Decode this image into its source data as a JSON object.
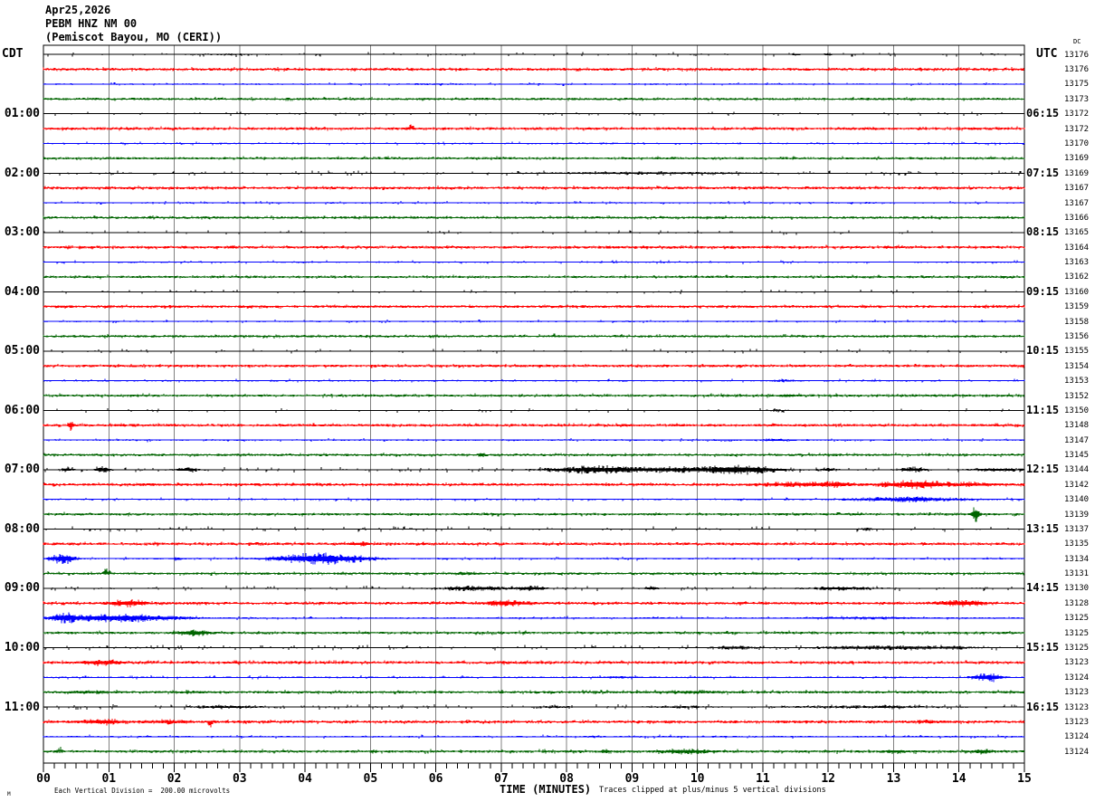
{
  "title": {
    "date": "Apr25,2026",
    "station": "PEBM HNZ NM 00",
    "location": "(Pemiscot Bayou, MO (CERI))"
  },
  "axes": {
    "left_title": "CDT",
    "right_title": "UTC",
    "right_col_header": "DC",
    "x_title": "TIME (MINUTES)",
    "footer_left": "Each Vertical Division =  200.00 microvolts",
    "footer_right": "Traces clipped at plus/minus 5 vertical divisions",
    "watermark": "M",
    "x_tick_labels": [
      "00",
      "01",
      "02",
      "03",
      "04",
      "05",
      "06",
      "07",
      "08",
      "09",
      "10",
      "11",
      "12",
      "13",
      "14",
      "15"
    ]
  },
  "hours": [
    {
      "row": 4,
      "cdt": "01:00",
      "utc": "06:15"
    },
    {
      "row": 8,
      "cdt": "02:00",
      "utc": "07:15"
    },
    {
      "row": 12,
      "cdt": "03:00",
      "utc": "08:15"
    },
    {
      "row": 16,
      "cdt": "04:00",
      "utc": "09:15"
    },
    {
      "row": 20,
      "cdt": "05:00",
      "utc": "10:15"
    },
    {
      "row": 24,
      "cdt": "06:00",
      "utc": "11:15"
    },
    {
      "row": 28,
      "cdt": "07:00",
      "utc": "12:15"
    },
    {
      "row": 32,
      "cdt": "08:00",
      "utc": "13:15"
    },
    {
      "row": 36,
      "cdt": "09:00",
      "utc": "14:15"
    },
    {
      "row": 40,
      "cdt": "10:00",
      "utc": "15:15"
    },
    {
      "row": 44,
      "cdt": "11:00",
      "utc": "16:15"
    }
  ],
  "chart_data": {
    "type": "line",
    "x_range_minutes": [
      0,
      15
    ],
    "x_title": "TIME (MINUTES)",
    "grid": "vertical lines each minute",
    "trace_colors": {
      "black": "#000000",
      "red": "#ff0000",
      "blue": "#0000ff",
      "green": "#006400"
    },
    "grid_color": "#808080",
    "noise_model": {
      "black": {
        "p": 0.1,
        "amp": 2.2,
        "body": 0.5
      },
      "red": {
        "p": 0.24,
        "amp": 2.1,
        "body": 1.5
      },
      "blue": {
        "p": 0.13,
        "amp": 1.8,
        "body": 0.8
      },
      "green": {
        "p": 0.2,
        "amp": 2.0,
        "body": 1.35
      }
    },
    "rows": [
      {
        "k": "black",
        "v": "13176",
        "n": 1.0,
        "e": [
          [
            2.8,
            1.5,
            1.2
          ],
          [
            11.5,
            0.1,
            2.2
          ],
          [
            12.0,
            0.1,
            2.2
          ]
        ]
      },
      {
        "k": "red",
        "v": "13176",
        "n": 1.0,
        "e": []
      },
      {
        "k": "blue",
        "v": "13175",
        "n": 1.0,
        "e": [
          [
            5.9,
            0.8,
            1.2
          ]
        ]
      },
      {
        "k": "green",
        "v": "13173",
        "n": 1.0,
        "e": []
      },
      {
        "k": "black",
        "v": "13172",
        "n": 0.9,
        "e": []
      },
      {
        "k": "red",
        "v": "13172",
        "n": 1.0,
        "e": [
          [
            5.63,
            0.06,
            6,
            "up"
          ]
        ]
      },
      {
        "k": "blue",
        "v": "13170",
        "n": 1.0,
        "e": [
          [
            8.6,
            0.3,
            1.5
          ]
        ]
      },
      {
        "k": "green",
        "v": "13169",
        "n": 1.0,
        "e": []
      },
      {
        "k": "black",
        "v": "13169",
        "n": 1.3,
        "e": [
          [
            9.2,
            3.0,
            1.7
          ]
        ]
      },
      {
        "k": "red",
        "v": "13167",
        "n": 1.0,
        "e": []
      },
      {
        "k": "blue",
        "v": "13167",
        "n": 1.0,
        "e": []
      },
      {
        "k": "green",
        "v": "13166",
        "n": 1.0,
        "e": []
      },
      {
        "k": "black",
        "v": "13165",
        "n": 0.95,
        "e": []
      },
      {
        "k": "red",
        "v": "13164",
        "n": 1.0,
        "e": [
          [
            2.9,
            0.08,
            3
          ]
        ]
      },
      {
        "k": "blue",
        "v": "13163",
        "n": 1.0,
        "e": []
      },
      {
        "k": "green",
        "v": "13162",
        "n": 1.0,
        "e": []
      },
      {
        "k": "black",
        "v": "13160",
        "n": 0.95,
        "e": []
      },
      {
        "k": "red",
        "v": "13159",
        "n": 1.0,
        "e": []
      },
      {
        "k": "blue",
        "v": "13158",
        "n": 1.0,
        "e": []
      },
      {
        "k": "green",
        "v": "13156",
        "n": 1.0,
        "e": [
          [
            7.8,
            0.07,
            3.5,
            "up"
          ]
        ]
      },
      {
        "k": "black",
        "v": "13155",
        "n": 1.0,
        "e": []
      },
      {
        "k": "red",
        "v": "13154",
        "n": 1.0,
        "e": []
      },
      {
        "k": "blue",
        "v": "13153",
        "n": 1.0,
        "e": [
          [
            11.35,
            0.4,
            1.8
          ]
        ]
      },
      {
        "k": "green",
        "v": "13152",
        "n": 1.0,
        "e": [
          [
            11.4,
            0.5,
            1.8
          ]
        ]
      },
      {
        "k": "black",
        "v": "13150",
        "n": 1.0,
        "e": [
          [
            11.2,
            0.3,
            1.8
          ]
        ]
      },
      {
        "k": "red",
        "v": "13148",
        "n": 1.0,
        "e": [
          [
            0.42,
            0.07,
            7
          ]
        ]
      },
      {
        "k": "blue",
        "v": "13147",
        "n": 1.0,
        "e": [
          [
            11.2,
            0.5,
            2.2
          ]
        ]
      },
      {
        "k": "green",
        "v": "13145",
        "n": 1.0,
        "e": [
          [
            6.7,
            0.09,
            4
          ],
          [
            9.0,
            1.0,
            1.3
          ],
          [
            14.1,
            0.3,
            1.6
          ]
        ]
      },
      {
        "k": "black",
        "v": "13144",
        "n": 1.8,
        "e": [
          [
            0.35,
            0.15,
            3.5
          ],
          [
            0.9,
            0.18,
            5
          ],
          [
            2.2,
            0.35,
            3
          ],
          [
            8.5,
            1.2,
            5
          ],
          [
            9.6,
            1.8,
            4
          ],
          [
            10.6,
            1.0,
            6
          ],
          [
            12.0,
            0.3,
            2.4
          ],
          [
            13.3,
            0.35,
            3.6
          ],
          [
            14.6,
            0.8,
            2.4
          ]
        ]
      },
      {
        "k": "red",
        "v": "13142",
        "n": 1.0,
        "e": [
          [
            11.6,
            1.2,
            3.4
          ],
          [
            12.1,
            0.4,
            4.6
          ],
          [
            13.35,
            0.9,
            5.5
          ],
          [
            14.15,
            0.6,
            3.4
          ]
        ]
      },
      {
        "k": "blue",
        "v": "13140",
        "n": 1.0,
        "e": [
          [
            13.2,
            1.6,
            3
          ],
          [
            13.3,
            0.6,
            3.8
          ]
        ]
      },
      {
        "k": "green",
        "v": "13139",
        "n": 1.0,
        "e": [
          [
            14.25,
            0.1,
            9.5
          ]
        ]
      },
      {
        "k": "black",
        "v": "13137",
        "n": 1.5,
        "e": [
          [
            12.6,
            0.1,
            3.4
          ]
        ]
      },
      {
        "k": "red",
        "v": "13135",
        "n": 1.0,
        "e": [
          [
            3.3,
            0.2,
            2.2
          ],
          [
            4.85,
            0.4,
            2.8
          ]
        ]
      },
      {
        "k": "blue",
        "v": "13134",
        "n": 1.0,
        "e": [
          [
            0.3,
            0.3,
            6.5
          ],
          [
            2.05,
            0.1,
            2.8
          ],
          [
            4.25,
            1.1,
            7
          ]
        ]
      },
      {
        "k": "green",
        "v": "13131",
        "n": 1.0,
        "e": [
          [
            0.97,
            0.09,
            6.5,
            "up"
          ],
          [
            6.45,
            0.3,
            2.8
          ]
        ]
      },
      {
        "k": "black",
        "v": "13130",
        "n": 1.8,
        "e": [
          [
            6.6,
            0.9,
            3.2
          ],
          [
            7.45,
            0.4,
            3.6
          ],
          [
            9.3,
            0.3,
            2.5
          ],
          [
            12.2,
            1.0,
            2.5
          ]
        ]
      },
      {
        "k": "red",
        "v": "13128",
        "n": 1.0,
        "e": [
          [
            1.3,
            0.5,
            4.6
          ],
          [
            7.1,
            0.6,
            4.2
          ],
          [
            14.05,
            0.6,
            4.6
          ]
        ]
      },
      {
        "k": "blue",
        "v": "13125",
        "n": 1.0,
        "e": [
          [
            0.35,
            0.4,
            6.5
          ],
          [
            1.1,
            1.4,
            5.2
          ],
          [
            2.0,
            0.6,
            2.8
          ],
          [
            12.5,
            1.8,
            1.8
          ]
        ]
      },
      {
        "k": "green",
        "v": "13125",
        "n": 1.1,
        "e": [
          [
            2.3,
            0.45,
            4
          ]
        ]
      },
      {
        "k": "black",
        "v": "13125",
        "n": 2.0,
        "e": [
          [
            10.6,
            0.7,
            2.3
          ],
          [
            12.9,
            1.8,
            2.8
          ],
          [
            13.9,
            0.6,
            2.2
          ]
        ]
      },
      {
        "k": "red",
        "v": "13123",
        "n": 1.1,
        "e": [
          [
            0.9,
            0.5,
            4.2
          ]
        ]
      },
      {
        "k": "blue",
        "v": "13124",
        "n": 1.1,
        "e": [
          [
            8.8,
            0.3,
            2
          ],
          [
            14.45,
            0.35,
            6
          ]
        ]
      },
      {
        "k": "green",
        "v": "13123",
        "n": 1.3,
        "e": [
          [
            0.75,
            0.6,
            2.5
          ],
          [
            2.3,
            0.5,
            2
          ],
          [
            9.9,
            0.9,
            2.5
          ]
        ]
      },
      {
        "k": "black",
        "v": "13123",
        "n": 2.0,
        "e": [
          [
            2.8,
            0.9,
            2.5
          ],
          [
            7.8,
            0.5,
            2
          ],
          [
            9.8,
            0.8,
            2
          ],
          [
            12.6,
            2.2,
            2
          ]
        ]
      },
      {
        "k": "red",
        "v": "13123",
        "n": 1.1,
        "e": [
          [
            0.9,
            0.6,
            4.2
          ],
          [
            1.9,
            0.7,
            3
          ],
          [
            2.55,
            0.06,
            7.5,
            "down"
          ],
          [
            13.5,
            0.6,
            2.2
          ]
        ]
      },
      {
        "k": "blue",
        "v": "13124",
        "n": 1.0,
        "e": [
          [
            8.4,
            0.3,
            1.8
          ]
        ]
      },
      {
        "k": "green",
        "v": "13124",
        "n": 1.3,
        "e": [
          [
            0.25,
            0.07,
            5.5,
            "up"
          ],
          [
            8.6,
            0.1,
            4
          ],
          [
            9.8,
            0.7,
            3.6
          ],
          [
            13.05,
            0.3,
            3
          ],
          [
            14.35,
            0.3,
            3.4
          ]
        ]
      }
    ]
  }
}
